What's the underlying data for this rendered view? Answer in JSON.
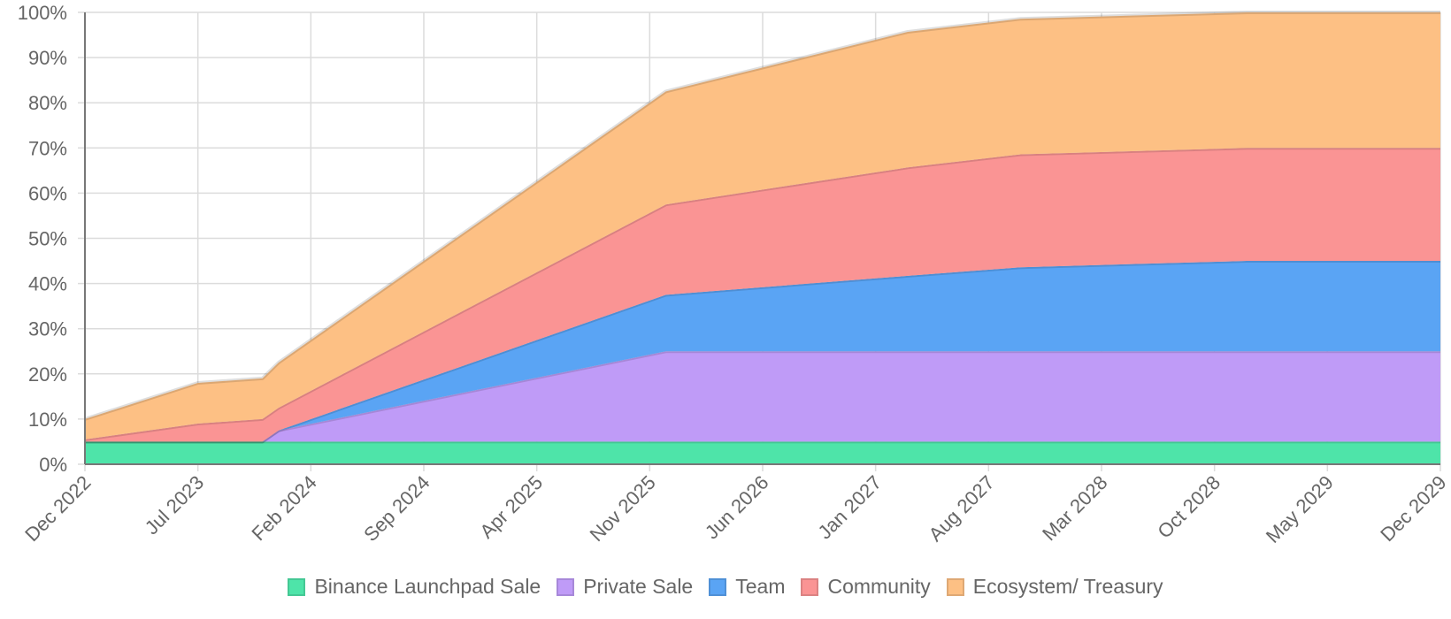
{
  "chart_data": {
    "type": "area",
    "stacked": true,
    "title": "",
    "xlabel": "",
    "ylabel": "",
    "ylim": [
      0,
      100
    ],
    "y_ticks": [
      "0%",
      "10%",
      "20%",
      "30%",
      "40%",
      "50%",
      "60%",
      "70%",
      "80%",
      "90%",
      "100%"
    ],
    "x_ticks": [
      "Dec 2022",
      "Jul 2023",
      "Feb 2024",
      "Sep 2024",
      "Apr 2025",
      "Nov 2025",
      "Jun 2026",
      "Jan 2027",
      "Aug 2027",
      "Mar 2028",
      "Oct 2028",
      "May 2029",
      "Dec 2029"
    ],
    "x": [
      0,
      7,
      11,
      12,
      36,
      51,
      58,
      72,
      84
    ],
    "x_unit": "months since Dec 2022",
    "series": [
      {
        "name": "Binance Launchpad Sale",
        "color": "#4ee4a9",
        "values": [
          5,
          5,
          5,
          5,
          5,
          5,
          5,
          5,
          5
        ]
      },
      {
        "name": "Private Sale",
        "color": "#bf9bf7",
        "values": [
          0,
          0,
          0,
          2.5,
          20,
          20,
          20,
          20,
          20
        ]
      },
      {
        "name": "Team",
        "color": "#5aa4f4",
        "values": [
          0,
          0,
          0,
          0,
          12.5,
          16.7,
          18.6,
          20,
          20
        ]
      },
      {
        "name": "Community",
        "color": "#fa9494",
        "values": [
          0.5,
          4,
          5,
          5,
          20,
          24,
          25,
          25,
          25
        ]
      },
      {
        "name": "Ecosystem/ Treasury",
        "color": "#fdc084",
        "values": [
          4.5,
          9,
          9,
          10,
          25,
          30,
          30,
          30,
          30
        ]
      }
    ],
    "grid": true,
    "legend_position": "bottom"
  }
}
